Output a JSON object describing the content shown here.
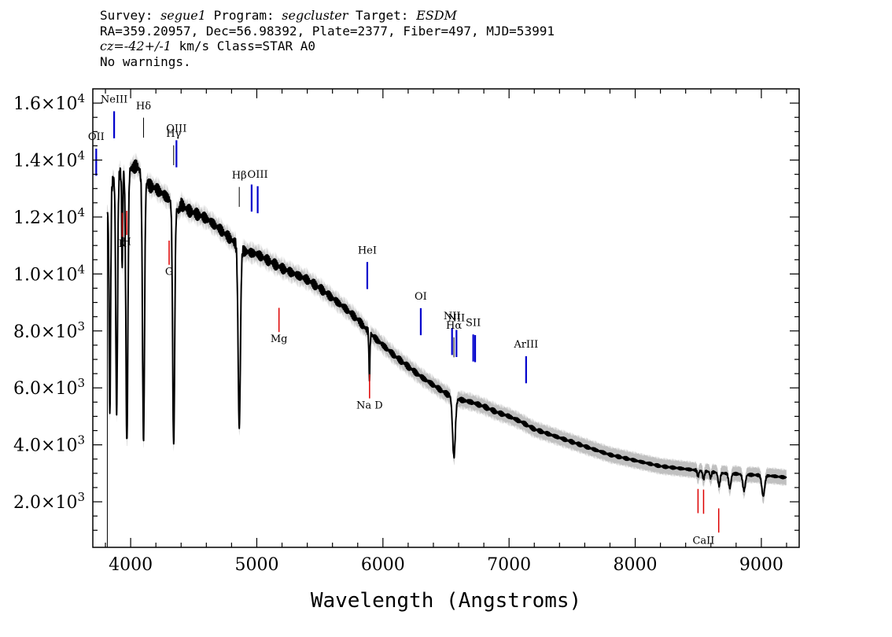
{
  "header": {
    "line1": {
      "survey_label": "Survey:",
      "survey": "segue1",
      "program_label": "Program:",
      "program": "segcluster",
      "target_label": "Target:",
      "target": "ESDM"
    },
    "line2": "RA=359.20957, Dec=56.98392, Plate=2377, Fiber=497, MJD=53991",
    "line3": {
      "cz_label": "cz=",
      "cz_value": "-42+/-1",
      "unit_class": " km/s Class=STAR A0"
    },
    "line4": "No warnings."
  },
  "colors": {
    "flux": "#000000",
    "error_band": "#c0c0c0",
    "emission_line": "#0000cc",
    "absorption_line": "#dd0000",
    "sky_marker": "#000000"
  },
  "chart_data": {
    "type": "line",
    "title": "Survey: segue1 Program: segcluster Target: ESDM",
    "xlabel": "Wavelength (Angstroms)",
    "ylabel": "",
    "xlim": [
      3700,
      9300
    ],
    "ylim": [
      400,
      16500
    ],
    "x_ticks": [
      4000,
      5000,
      6000,
      7000,
      8000,
      9000
    ],
    "x_tick_labels": [
      "4000",
      "5000",
      "6000",
      "7000",
      "8000",
      "9000"
    ],
    "y_ticks": [
      2000,
      4000,
      6000,
      8000,
      10000,
      12000,
      14000,
      16000
    ],
    "y_tick_labels": [
      {
        "mantissa": "2.0",
        "exp": "3"
      },
      {
        "mantissa": "4.0",
        "exp": "3"
      },
      {
        "mantissa": "6.0",
        "exp": "3"
      },
      {
        "mantissa": "8.0",
        "exp": "3"
      },
      {
        "mantissa": "1.0",
        "exp": "4"
      },
      {
        "mantissa": "1.2",
        "exp": "4"
      },
      {
        "mantissa": "1.4",
        "exp": "4"
      },
      {
        "mantissa": "1.6",
        "exp": "4"
      }
    ],
    "times_sign": "×10",
    "continuum": [
      {
        "x": 3810,
        "y": 12000
      },
      {
        "x": 3850,
        "y": 13200
      },
      {
        "x": 3900,
        "y": 13500
      },
      {
        "x": 3950,
        "y": 13650
      },
      {
        "x": 4000,
        "y": 13700
      },
      {
        "x": 4050,
        "y": 13800
      },
      {
        "x": 4100,
        "y": 13400
      },
      {
        "x": 4150,
        "y": 13100
      },
      {
        "x": 4200,
        "y": 13000
      },
      {
        "x": 4300,
        "y": 12650
      },
      {
        "x": 4380,
        "y": 12200
      },
      {
        "x": 4400,
        "y": 12450
      },
      {
        "x": 4450,
        "y": 12250
      },
      {
        "x": 4500,
        "y": 12150
      },
      {
        "x": 4600,
        "y": 11950
      },
      {
        "x": 4700,
        "y": 11600
      },
      {
        "x": 4800,
        "y": 11200
      },
      {
        "x": 4900,
        "y": 10800
      },
      {
        "x": 5000,
        "y": 10700
      },
      {
        "x": 5100,
        "y": 10450
      },
      {
        "x": 5200,
        "y": 10200
      },
      {
        "x": 5300,
        "y": 10000
      },
      {
        "x": 5400,
        "y": 9800
      },
      {
        "x": 5500,
        "y": 9500
      },
      {
        "x": 5600,
        "y": 9150
      },
      {
        "x": 5700,
        "y": 8800
      },
      {
        "x": 5800,
        "y": 8400
      },
      {
        "x": 5900,
        "y": 7900
      },
      {
        "x": 6000,
        "y": 7500
      },
      {
        "x": 6100,
        "y": 7100
      },
      {
        "x": 6200,
        "y": 6750
      },
      {
        "x": 6300,
        "y": 6400
      },
      {
        "x": 6400,
        "y": 6100
      },
      {
        "x": 6500,
        "y": 5800
      },
      {
        "x": 6600,
        "y": 5600
      },
      {
        "x": 6700,
        "y": 5500
      },
      {
        "x": 6800,
        "y": 5350
      },
      {
        "x": 6900,
        "y": 5150
      },
      {
        "x": 7000,
        "y": 5000
      },
      {
        "x": 7100,
        "y": 4800
      },
      {
        "x": 7200,
        "y": 4550
      },
      {
        "x": 7300,
        "y": 4400
      },
      {
        "x": 7400,
        "y": 4250
      },
      {
        "x": 7500,
        "y": 4100
      },
      {
        "x": 7600,
        "y": 3950
      },
      {
        "x": 7700,
        "y": 3800
      },
      {
        "x": 7800,
        "y": 3650
      },
      {
        "x": 7900,
        "y": 3550
      },
      {
        "x": 8000,
        "y": 3450
      },
      {
        "x": 8100,
        "y": 3350
      },
      {
        "x": 8200,
        "y": 3250
      },
      {
        "x": 8300,
        "y": 3200
      },
      {
        "x": 8400,
        "y": 3150
      },
      {
        "x": 8500,
        "y": 3100
      },
      {
        "x": 8600,
        "y": 3050
      },
      {
        "x": 8700,
        "y": 3000
      },
      {
        "x": 8800,
        "y": 2980
      },
      {
        "x": 8900,
        "y": 2950
      },
      {
        "x": 9000,
        "y": 2930
      },
      {
        "x": 9100,
        "y": 2900
      },
      {
        "x": 9200,
        "y": 2850
      }
    ],
    "absorption_features": [
      {
        "center": 3835,
        "depth": 0.6,
        "width": 6
      },
      {
        "center": 3889,
        "depth": 0.62,
        "width": 7
      },
      {
        "center": 3933,
        "depth": 0.25,
        "width": 4
      },
      {
        "center": 3970,
        "depth": 0.7,
        "width": 8
      },
      {
        "center": 4102,
        "depth": 0.69,
        "width": 8
      },
      {
        "center": 4341,
        "depth": 0.68,
        "width": 8
      },
      {
        "center": 4861,
        "depth": 0.58,
        "width": 9
      },
      {
        "center": 5893,
        "depth": 0.2,
        "width": 4
      },
      {
        "center": 6563,
        "depth": 0.37,
        "width": 11
      },
      {
        "center": 8498,
        "depth": 0.07,
        "width": 6
      },
      {
        "center": 8542,
        "depth": 0.09,
        "width": 7
      },
      {
        "center": 8598,
        "depth": 0.07,
        "width": 6
      },
      {
        "center": 8665,
        "depth": 0.15,
        "width": 8
      },
      {
        "center": 8750,
        "depth": 0.17,
        "width": 9
      },
      {
        "center": 8863,
        "depth": 0.19,
        "width": 10
      },
      {
        "center": 9015,
        "depth": 0.25,
        "width": 11
      }
    ],
    "blue_cutoff": 3815,
    "error_band_halfwidth": 270,
    "emission_lines": [
      {
        "label": "OII",
        "wavelength": 3727
      },
      {
        "label": "NeIII",
        "wavelength": 3869
      },
      {
        "label": "OIII",
        "wavelength": 4363
      },
      {
        "label": "OIII",
        "wavelength": 4959
      },
      {
        "label": "OIII",
        "wavelength": 5007
      },
      {
        "label": "HeI",
        "wavelength": 5876
      },
      {
        "label": "OI",
        "wavelength": 6300
      },
      {
        "label": "NII",
        "wavelength": 6548
      },
      {
        "label": "NII",
        "wavelength": 6583
      },
      {
        "label": "SII",
        "wavelength": 6716
      },
      {
        "label": "SII",
        "wavelength": 6731
      },
      {
        "label": "ArIII",
        "wavelength": 7135
      }
    ],
    "absorption_lines": [
      {
        "label": "K",
        "wavelength": 3934
      },
      {
        "label": "H",
        "wavelength": 3969
      },
      {
        "label": "G",
        "wavelength": 4305
      },
      {
        "label": "Mg",
        "wavelength": 5176
      },
      {
        "label": "Na D",
        "wavelength": 5894
      },
      {
        "label": "CaII",
        "wavelength": 8498
      },
      {
        "label": "CaII",
        "wavelength": 8542
      },
      {
        "label": "CaII",
        "wavelength": 8662
      }
    ],
    "balmer_lines": [
      {
        "label": "Hδ",
        "wavelength": 4102
      },
      {
        "label": "Hγ",
        "wavelength": 4341
      },
      {
        "label": "Hβ",
        "wavelength": 4861
      },
      {
        "label": "Hα",
        "wavelength": 6563
      }
    ],
    "annotation_labels": [
      {
        "text": "OII",
        "at": 3727,
        "set": "emission"
      },
      {
        "text": "NeIII",
        "at": 3869,
        "set": "emission"
      },
      {
        "text": "Hδ",
        "at": 4102,
        "set": "balmer"
      },
      {
        "text": "Hγ",
        "at": 4341,
        "set": "balmer"
      },
      {
        "text": "OIII",
        "at": 4363,
        "set": "emission"
      },
      {
        "text": "Hβ",
        "at": 4861,
        "set": "balmer"
      },
      {
        "text": "OIII",
        "at": 5007,
        "set": "emission"
      },
      {
        "text": "HeI",
        "at": 5876,
        "set": "emission"
      },
      {
        "text": "OI",
        "at": 6300,
        "set": "emission"
      },
      {
        "text": "NII",
        "at": 6548,
        "set": "emission"
      },
      {
        "text": "Hα",
        "at": 6563,
        "set": "balmer"
      },
      {
        "text": "NII",
        "at": 6583,
        "set": "emission"
      },
      {
        "text": "SII",
        "at": 6716,
        "set": "emission"
      },
      {
        "text": "ArIII",
        "at": 7135,
        "set": "emission"
      },
      {
        "text": "K",
        "at": 3934,
        "set": "absorption"
      },
      {
        "text": "H",
        "at": 3969,
        "set": "absorption"
      },
      {
        "text": "G",
        "at": 4305,
        "set": "absorption"
      },
      {
        "text": "Mg",
        "at": 5176,
        "set": "absorption"
      },
      {
        "text": "Na D",
        "at": 5894,
        "set": "absorption"
      },
      {
        "text": "CaII",
        "at": 8542,
        "set": "absorption"
      }
    ]
  }
}
